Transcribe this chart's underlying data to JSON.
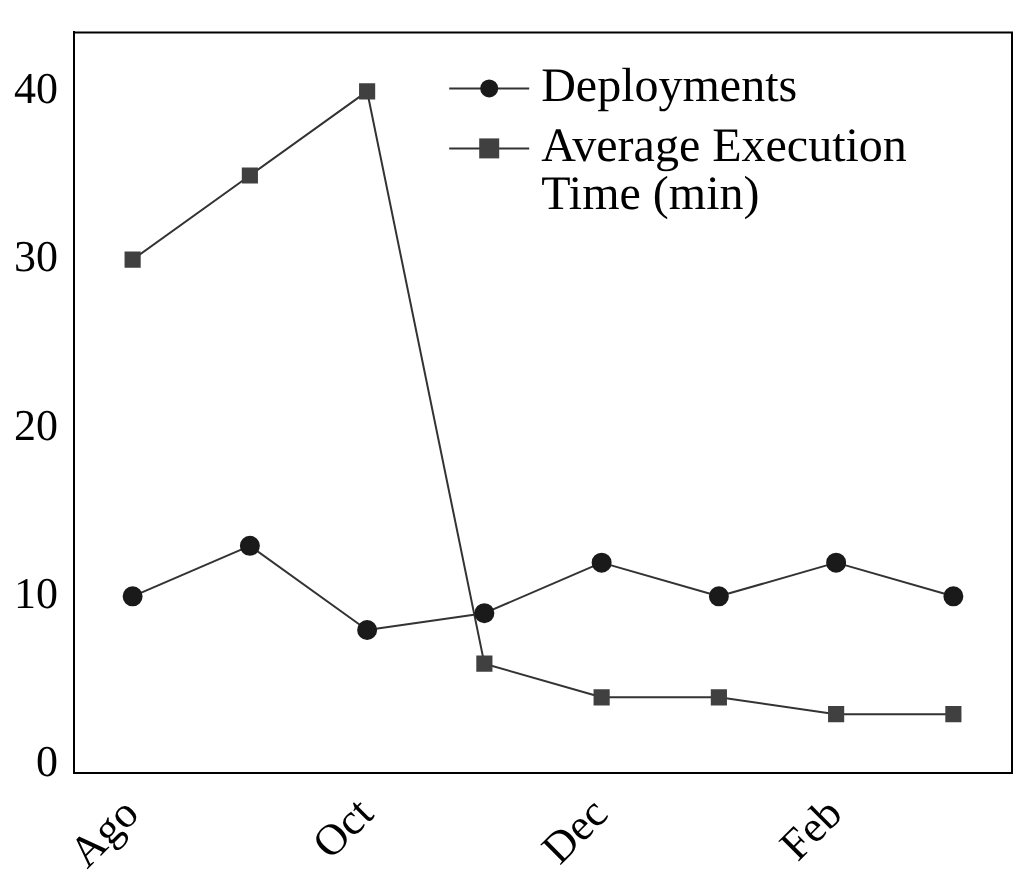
{
  "chart_data": {
    "type": "line",
    "categories": [
      "Ago",
      null,
      "Oct",
      null,
      "Dec",
      null,
      "Feb",
      null
    ],
    "series": [
      {
        "name": "Deployments",
        "color": "#1a1a1a",
        "marker": "circle",
        "values": [
          10,
          13,
          8,
          9,
          12,
          10,
          12,
          10
        ]
      },
      {
        "name": "Average Execution Time (min)",
        "color": "#404040",
        "marker": "square",
        "values": [
          30,
          35,
          40,
          6,
          4,
          4,
          3,
          3
        ]
      }
    ],
    "ylim": [
      -0.5,
      43.5
    ],
    "yticks": [
      0,
      10,
      20,
      30,
      40
    ],
    "grid": false,
    "legend": "top right"
  }
}
